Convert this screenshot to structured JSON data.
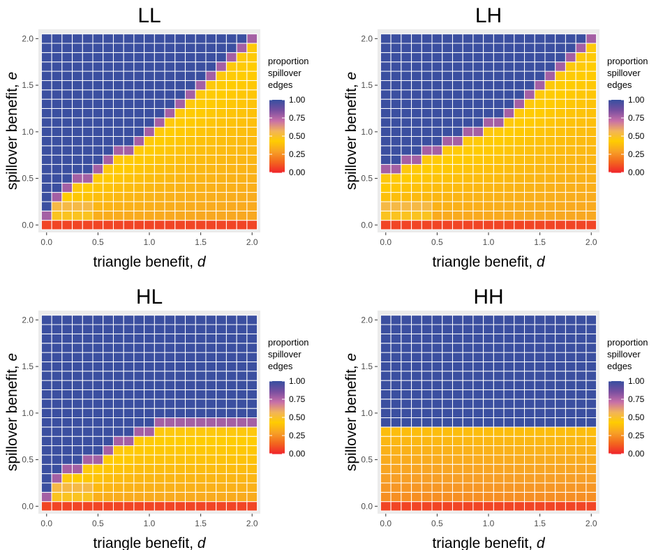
{
  "chart_data": [
    {
      "type": "heatmap",
      "title": "LL",
      "xlabel_text": "triangle benefit, ",
      "xlabel_var": "d",
      "ylabel_text": "spillover benefit, ",
      "ylabel_var": "e",
      "xticks": [
        "0.0",
        "0.5",
        "1.0",
        "1.5",
        "2.0"
      ],
      "yticks": [
        "0.0",
        "0.5",
        "1.0",
        "1.5",
        "2.0"
      ],
      "x": [
        0.0,
        0.1,
        0.2,
        0.3,
        0.4,
        0.5,
        0.6,
        0.7,
        0.8,
        0.9,
        1.0,
        1.1,
        1.2,
        1.3,
        1.4,
        1.5,
        1.6,
        1.7,
        1.8,
        1.9,
        2.0
      ],
      "y": [
        0.0,
        0.1,
        0.2,
        0.3,
        0.4,
        0.5,
        0.6,
        0.7,
        0.8,
        0.9,
        1.0,
        1.1,
        1.2,
        1.3,
        1.4,
        1.5,
        1.6,
        1.7,
        1.8,
        1.9,
        2.0
      ],
      "value_model": "lower_region",
      "boundary": [
        0.0,
        0.25,
        0.35,
        0.4,
        0.45,
        0.55,
        0.6,
        0.7,
        0.75,
        0.85,
        0.95,
        1.05,
        1.15,
        1.25,
        1.35,
        1.45,
        1.55,
        1.65,
        1.75,
        1.85,
        1.95
      ],
      "legend": {
        "title_lines": [
          "proportion",
          "spillover",
          "edges"
        ],
        "ticks": [
          "1.00",
          "0.75",
          "0.50",
          "0.25",
          "0.00"
        ]
      }
    },
    {
      "type": "heatmap",
      "title": "LH",
      "xlabel_text": "triangle benefit, ",
      "xlabel_var": "d",
      "ylabel_text": "spillover benefit, ",
      "ylabel_var": "e",
      "xticks": [
        "0.0",
        "0.5",
        "1.0",
        "1.5",
        "2.0"
      ],
      "yticks": [
        "0.0",
        "0.5",
        "1.0",
        "1.5",
        "2.0"
      ],
      "x": [
        0.0,
        0.1,
        0.2,
        0.3,
        0.4,
        0.5,
        0.6,
        0.7,
        0.8,
        0.9,
        1.0,
        1.1,
        1.2,
        1.3,
        1.4,
        1.5,
        1.6,
        1.7,
        1.8,
        1.9,
        2.0
      ],
      "y": [
        0.0,
        0.1,
        0.2,
        0.3,
        0.4,
        0.5,
        0.6,
        0.7,
        0.8,
        0.9,
        1.0,
        1.1,
        1.2,
        1.3,
        1.4,
        1.5,
        1.6,
        1.7,
        1.8,
        1.9,
        2.0
      ],
      "value_model": "lower_region",
      "boundary": [
        0.5,
        0.55,
        0.6,
        0.65,
        0.7,
        0.75,
        0.8,
        0.85,
        0.9,
        0.95,
        1.0,
        1.05,
        1.15,
        1.25,
        1.35,
        1.45,
        1.55,
        1.65,
        1.75,
        1.85,
        1.95
      ],
      "legend": {
        "title_lines": [
          "proportion",
          "spillover",
          "edges"
        ],
        "ticks": [
          "1.00",
          "0.75",
          "0.50",
          "0.25",
          "0.00"
        ]
      }
    },
    {
      "type": "heatmap",
      "title": "HL",
      "xlabel_text": "triangle benefit, ",
      "xlabel_var": "d",
      "ylabel_text": "spillover benefit, ",
      "ylabel_var": "e",
      "xticks": [
        "0.0",
        "0.5",
        "1.0",
        "1.5",
        "2.0"
      ],
      "yticks": [
        "0.0",
        "0.5",
        "1.0",
        "1.5",
        "2.0"
      ],
      "x": [
        0.0,
        0.1,
        0.2,
        0.3,
        0.4,
        0.5,
        0.6,
        0.7,
        0.8,
        0.9,
        1.0,
        1.1,
        1.2,
        1.3,
        1.4,
        1.5,
        1.6,
        1.7,
        1.8,
        1.9,
        2.0
      ],
      "y": [
        0.0,
        0.1,
        0.2,
        0.3,
        0.4,
        0.5,
        0.6,
        0.7,
        0.8,
        0.9,
        1.0,
        1.1,
        1.2,
        1.3,
        1.4,
        1.5,
        1.6,
        1.7,
        1.8,
        1.9,
        2.0
      ],
      "value_model": "lower_region",
      "boundary": [
        0.0,
        0.25,
        0.3,
        0.35,
        0.4,
        0.45,
        0.55,
        0.6,
        0.65,
        0.75,
        0.75,
        0.8,
        0.8,
        0.8,
        0.8,
        0.8,
        0.8,
        0.8,
        0.8,
        0.8,
        0.8
      ],
      "legend": {
        "title_lines": [
          "proportion",
          "spillover",
          "edges"
        ],
        "ticks": [
          "1.00",
          "0.75",
          "0.50",
          "0.25",
          "0.00"
        ]
      }
    },
    {
      "type": "heatmap",
      "title": "HH",
      "xlabel_text": "triangle benefit, ",
      "xlabel_var": "d",
      "ylabel_text": "spillover benefit, ",
      "ylabel_var": "e",
      "xticks": [
        "0.0",
        "0.5",
        "1.0",
        "1.5",
        "2.0"
      ],
      "yticks": [
        "0.0",
        "0.5",
        "1.0",
        "1.5",
        "2.0"
      ],
      "x": [
        0.0,
        0.1,
        0.2,
        0.3,
        0.4,
        0.5,
        0.6,
        0.7,
        0.8,
        0.9,
        1.0,
        1.1,
        1.2,
        1.3,
        1.4,
        1.5,
        1.6,
        1.7,
        1.8,
        1.9,
        2.0
      ],
      "y": [
        0.0,
        0.1,
        0.2,
        0.3,
        0.4,
        0.5,
        0.6,
        0.7,
        0.8,
        0.9,
        1.0,
        1.1,
        1.2,
        1.3,
        1.4,
        1.5,
        1.6,
        1.7,
        1.8,
        1.9,
        2.0
      ],
      "value_model": "horizontal_split",
      "boundary": [
        0.8,
        0.8,
        0.8,
        0.8,
        0.8,
        0.8,
        0.8,
        0.8,
        0.8,
        0.8,
        0.8,
        0.8,
        0.8,
        0.8,
        0.8,
        0.8,
        0.8,
        0.8,
        0.8,
        0.8,
        0.8
      ],
      "legend": {
        "title_lines": [
          "proportion",
          "spillover",
          "edges"
        ],
        "ticks": [
          "1.00",
          "0.75",
          "0.50",
          "0.25",
          "0.00"
        ]
      }
    }
  ],
  "colors": {
    "panel_bg": "#ebebeb",
    "gridline": "#ffffff",
    "tile_border": "#ffffff",
    "scale": [
      "#f02a2a",
      "#f36a1e",
      "#f7a126",
      "#ffcc00",
      "#f2b45a",
      "#c86fa8",
      "#7a4fa0",
      "#3b4fa0"
    ]
  }
}
